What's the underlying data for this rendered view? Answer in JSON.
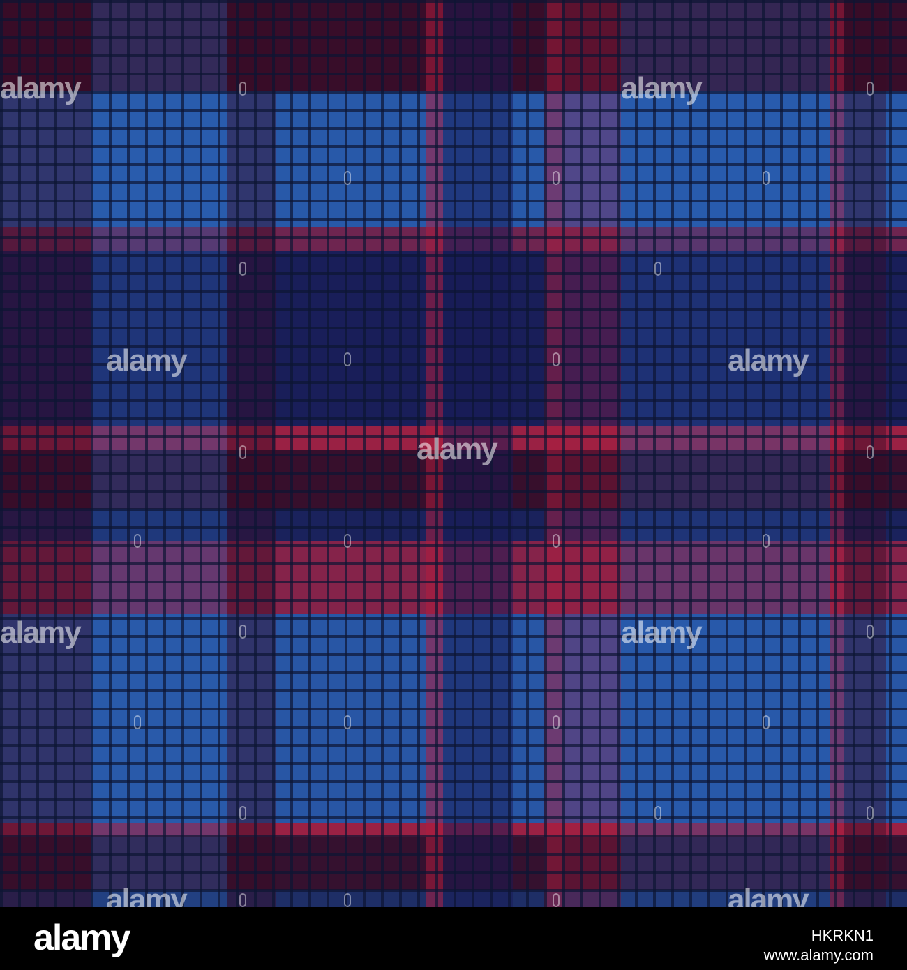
{
  "image": {
    "subject": "tartan",
    "colors": {
      "base": "#1e2f66",
      "light_blue": "#2a60b5",
      "navy": "#181a55",
      "red": "#b01e3e",
      "dark_red": "#3a0c26",
      "thread_line": "#0d1633"
    }
  },
  "watermark": {
    "text": "alamy"
  },
  "footer": {
    "logo": "alamy",
    "image_id": "HKRKN1",
    "url": "www.alamy.com"
  }
}
